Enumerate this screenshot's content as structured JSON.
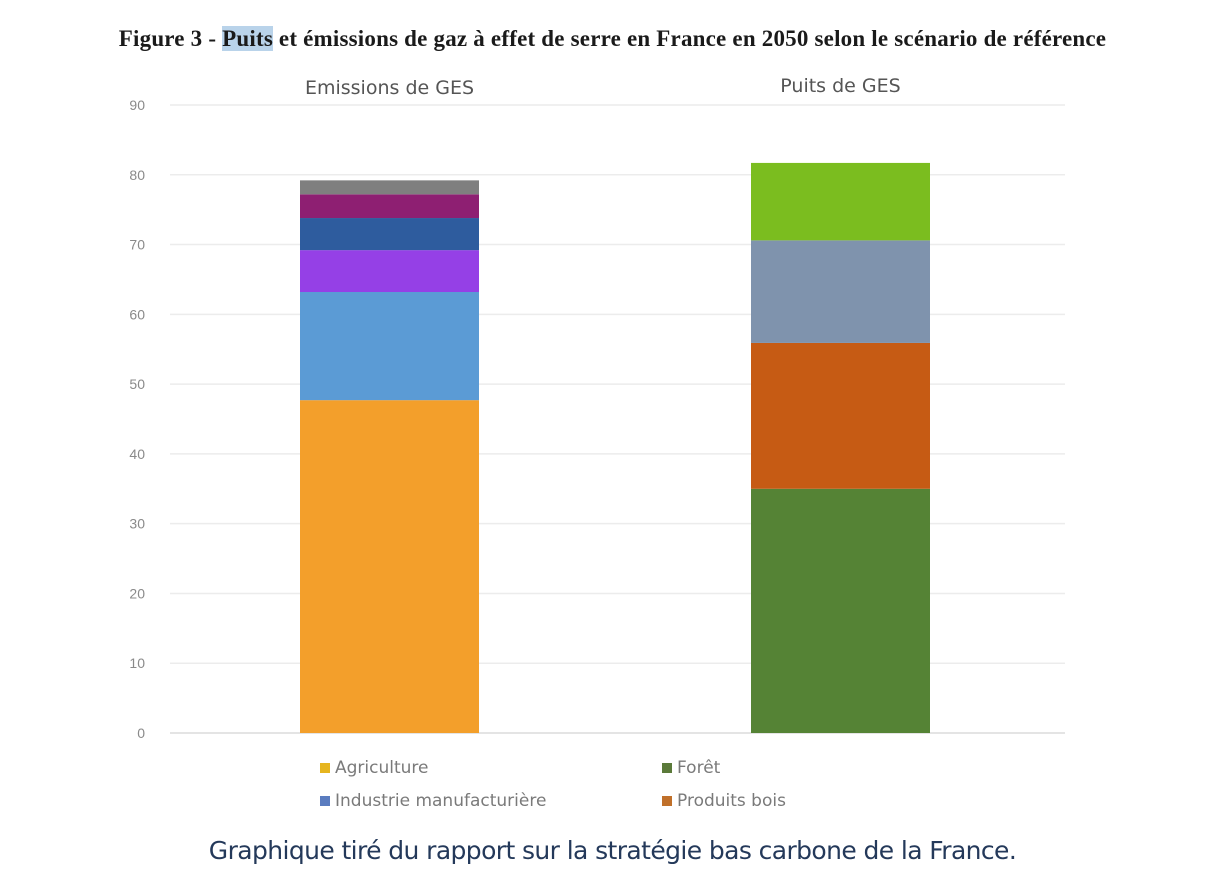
{
  "title": {
    "prefix": "Figure 3 - ",
    "highlighted": "Puits",
    "suffix": " et émissions de gaz à effet de serre en France en 2050 selon le scénario de référence"
  },
  "caption": "Graphique tiré du rapport sur la stratégie bas carbone de la France.",
  "chart_data": {
    "type": "bar",
    "stacked": true,
    "title": "Figure 3 - Puits et émissions de gaz à effet de serre en France en 2050 selon le scénario de référence",
    "categories": [
      "Emissions de GES",
      "Puits de GES"
    ],
    "ylim": [
      0,
      90
    ],
    "yticks": [
      0,
      10,
      20,
      30,
      40,
      50,
      60,
      70,
      80,
      90
    ],
    "ytick_labels": [
      "0",
      "10",
      "20",
      "30",
      "40",
      "50",
      "60",
      "70",
      "80",
      "90"
    ],
    "grid": true,
    "legend_position": "bottom",
    "stacks": [
      {
        "category": "Emissions de GES",
        "segments": [
          {
            "name": "Agriculture",
            "value": 47.7,
            "color": "#f39f2b",
            "legend": true,
            "legend_color": "#e6b51f"
          },
          {
            "name": "Industrie manufacturière",
            "value": 15.5,
            "color": "#5b9bd5",
            "legend": true,
            "legend_color": "#5a7cbf"
          },
          {
            "name": "",
            "value": 6.0,
            "color": "#9540e6",
            "legend": false
          },
          {
            "name": "",
            "value": 4.6,
            "color": "#2e5c9e",
            "legend": false
          },
          {
            "name": "",
            "value": 3.4,
            "color": "#8e1f72",
            "legend": false
          },
          {
            "name": "",
            "value": 2.0,
            "color": "#7f7f7f",
            "legend": false
          }
        ]
      },
      {
        "category": "Puits de GES",
        "segments": [
          {
            "name": "Forêt",
            "value": 35.0,
            "color": "#558335",
            "legend": true,
            "legend_color": "#5b7a3a"
          },
          {
            "name": "Produits bois",
            "value": 20.9,
            "color": "#c65b14",
            "legend": true,
            "legend_color": "#c0702a"
          },
          {
            "name": "",
            "value": 14.7,
            "color": "#7f93ad",
            "legend": false
          },
          {
            "name": "",
            "value": 11.1,
            "color": "#7bbd1f",
            "legend": false
          }
        ]
      }
    ],
    "legend": [
      {
        "label": "Agriculture",
        "color": "#e6b51f"
      },
      {
        "label": "Industrie manufacturière",
        "color": "#5a7cbf"
      },
      {
        "label": "Forêt",
        "color": "#5b7a3a"
      },
      {
        "label": "Produits bois",
        "color": "#c0702a"
      }
    ]
  }
}
